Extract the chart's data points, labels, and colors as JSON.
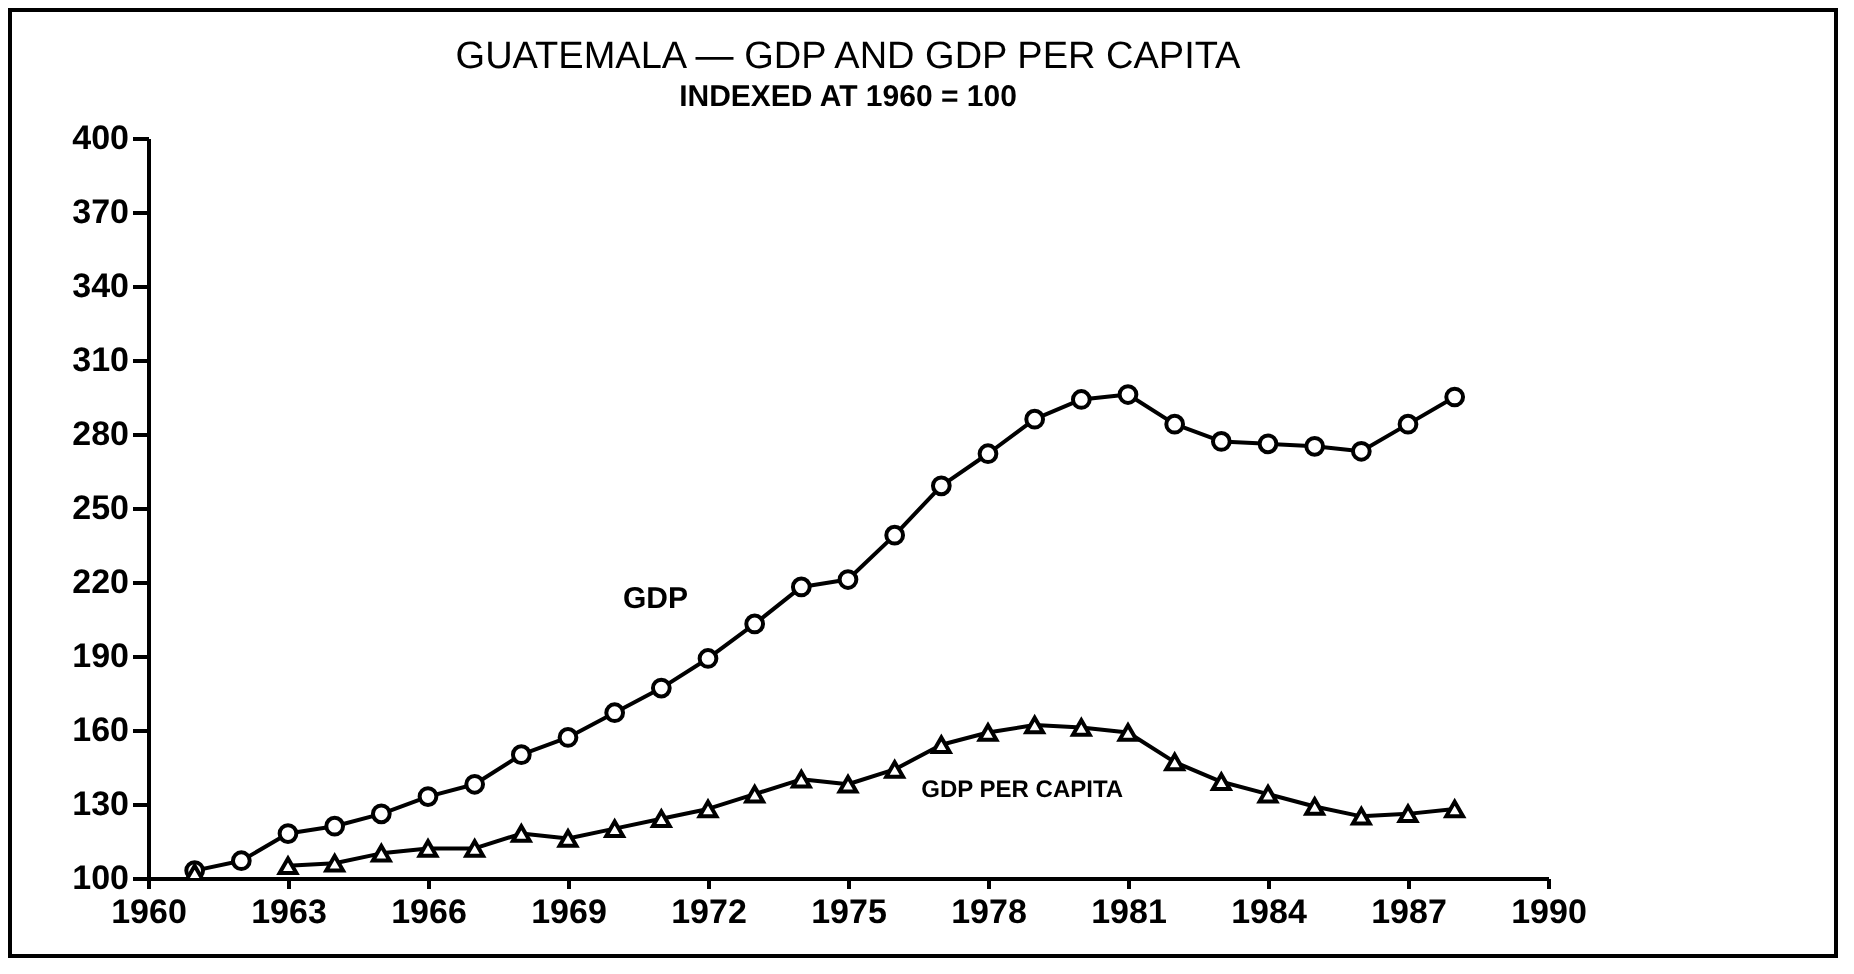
{
  "chart_data": {
    "type": "line",
    "title": "GUATEMALA — GDP AND GDP PER CAPITA",
    "subtitle": "INDEXED AT 1960 = 100",
    "x": [
      1961,
      1962,
      1963,
      1964,
      1965,
      1966,
      1967,
      1968,
      1969,
      1970,
      1971,
      1972,
      1973,
      1974,
      1975,
      1976,
      1977,
      1978,
      1979,
      1980,
      1981,
      1982,
      1983,
      1984,
      1985,
      1986,
      1987,
      1988
    ],
    "series": [
      {
        "name": "GDP",
        "color": "#000000",
        "marker": "circle",
        "values": [
          103,
          107,
          118,
          121,
          126,
          133,
          138,
          150,
          157,
          167,
          177,
          189,
          203,
          218,
          221,
          239,
          259,
          272,
          286,
          294,
          296,
          284,
          277,
          276,
          275,
          273,
          284,
          295
        ]
      },
      {
        "name": "GDP PER CAPITA",
        "color": "#000000",
        "marker": "triangle",
        "values": [
          102,
          null,
          105,
          106,
          110,
          112,
          112,
          118,
          116,
          120,
          124,
          128,
          134,
          140,
          138,
          144,
          154,
          159,
          162,
          161,
          159,
          147,
          139,
          134,
          129,
          125,
          126,
          128
        ]
      }
    ],
    "xlim": [
      1960,
      1990
    ],
    "xticks": [
      1960,
      1963,
      1966,
      1969,
      1972,
      1975,
      1978,
      1981,
      1984,
      1987,
      1990
    ],
    "ylim": [
      100,
      400
    ],
    "yticks": [
      100,
      130,
      160,
      190,
      220,
      250,
      280,
      310,
      340,
      370,
      400
    ],
    "grid": false,
    "legend": false,
    "line_style": "solid"
  }
}
